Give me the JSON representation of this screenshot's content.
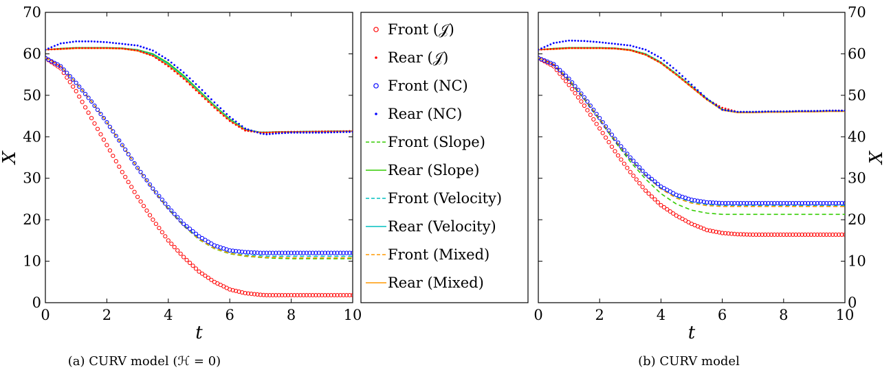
{
  "chart_data": [
    {
      "type": "line",
      "caption": "(a) CURV model (ℋ = 0)",
      "xlabel": "t",
      "ylabel": "X",
      "xlim": [
        0,
        10
      ],
      "ylim": [
        0,
        70
      ],
      "xticks": [
        0,
        2,
        4,
        6,
        8,
        10
      ],
      "yticks": [
        0,
        10,
        20,
        30,
        40,
        50,
        60,
        70
      ],
      "ylabel_side": "left",
      "x": [
        0,
        0.5,
        1,
        1.5,
        2,
        2.5,
        3,
        3.5,
        4,
        4.5,
        5,
        5.5,
        6,
        6.5,
        7,
        7.2,
        7.5,
        8,
        8.5,
        9,
        9.5,
        10
      ],
      "series": [
        {
          "name": "Front (𝒥)",
          "style": "circle",
          "color": "#ff0000",
          "values": [
            59,
            56.5,
            51,
            44.5,
            38,
            31.5,
            25.5,
            20,
            15,
            11,
            7.5,
            5,
            3.2,
            2.3,
            1.9,
            1.8,
            1.8,
            1.8,
            1.8,
            1.8,
            1.8,
            1.8
          ]
        },
        {
          "name": "Rear (𝒥)",
          "style": "dot",
          "color": "#ff0000",
          "values": [
            61,
            61.2,
            61.4,
            61.4,
            61.4,
            61.3,
            60.8,
            59.5,
            57,
            54,
            50.5,
            47,
            43.8,
            41.5,
            41,
            41,
            41.1,
            41.2,
            41.2,
            41.3,
            41.3,
            41.4
          ]
        },
        {
          "name": "Front (NC)",
          "style": "circle",
          "color": "#0000ff",
          "values": [
            59,
            57,
            53,
            48.5,
            43.5,
            38,
            32.5,
            27.5,
            23,
            19,
            16,
            13.8,
            12.6,
            12.2,
            12,
            12,
            12,
            12,
            12,
            12,
            12,
            12
          ]
        },
        {
          "name": "Rear (NC)",
          "style": "dot",
          "color": "#0000ff",
          "values": [
            61,
            62.5,
            63,
            63,
            62.8,
            62.4,
            62,
            60.8,
            58.5,
            55.5,
            52,
            48.3,
            44.8,
            42,
            40.8,
            40.6,
            40.8,
            41,
            41,
            41,
            41.1,
            41.2
          ]
        },
        {
          "name": "Front (Slope)",
          "style": "dashed",
          "color": "#33cc00",
          "values": [
            59,
            57,
            53,
            48.5,
            43.5,
            38,
            32.5,
            27.3,
            22.5,
            18.5,
            15.2,
            13,
            11.8,
            11.2,
            10.9,
            10.8,
            10.7,
            10.6,
            10.6,
            10.6,
            10.6,
            10.6
          ]
        },
        {
          "name": "Rear (Slope)",
          "style": "solid",
          "color": "#33cc00",
          "values": [
            61,
            61.3,
            61.5,
            61.5,
            61.5,
            61.4,
            61,
            60,
            57.8,
            54.8,
            51.2,
            47.6,
            44.3,
            41.8,
            41.1,
            41.1,
            41.2,
            41.2,
            41.3,
            41.3,
            41.4,
            41.4
          ]
        },
        {
          "name": "Front (Velocity)",
          "style": "dashed",
          "color": "#00bfbf",
          "values": [
            59,
            57,
            53,
            48.5,
            43.5,
            38,
            32.5,
            27.4,
            22.8,
            18.8,
            15.5,
            13.2,
            12,
            11.5,
            11.3,
            11.2,
            11.2,
            11.2,
            11.2,
            11.2,
            11.2,
            11.2
          ]
        },
        {
          "name": "Rear (Velocity)",
          "style": "solid",
          "color": "#00bfbf",
          "values": [
            61,
            61.2,
            61.4,
            61.4,
            61.4,
            61.3,
            60.9,
            59.8,
            57.5,
            54.5,
            51,
            47.4,
            44.1,
            41.7,
            41.1,
            41.1,
            41.2,
            41.2,
            41.3,
            41.3,
            41.4,
            41.4
          ]
        },
        {
          "name": "Front (Mixed)",
          "style": "dashed",
          "color": "#ff9900",
          "values": [
            59,
            57,
            53,
            48.5,
            43.5,
            38,
            32.5,
            27.3,
            22.6,
            18.6,
            15.3,
            13.1,
            11.9,
            11.3,
            11,
            10.9,
            10.9,
            10.8,
            10.8,
            10.8,
            10.8,
            10.8
          ]
        },
        {
          "name": "Rear (Mixed)",
          "style": "solid",
          "color": "#ff9900",
          "values": [
            61,
            61.1,
            61.3,
            61.3,
            61.3,
            61.2,
            60.7,
            59.5,
            57.2,
            54.2,
            50.7,
            47.2,
            43.9,
            41.6,
            41,
            41,
            41.1,
            41.1,
            41.2,
            41.2,
            41.3,
            41.3
          ]
        }
      ]
    },
    {
      "type": "line",
      "caption": "(b) CURV model",
      "xlabel": "t",
      "ylabel": "X",
      "xlim": [
        0,
        10
      ],
      "ylim": [
        0,
        70
      ],
      "xticks": [
        0,
        2,
        4,
        6,
        8,
        10
      ],
      "yticks": [
        0,
        10,
        20,
        30,
        40,
        50,
        60,
        70
      ],
      "ylabel_side": "right",
      "x": [
        0,
        0.5,
        1,
        1.5,
        2,
        2.5,
        3,
        3.5,
        4,
        4.5,
        5,
        5.5,
        6,
        6.5,
        7,
        7.5,
        8,
        8.5,
        9,
        9.5,
        10
      ],
      "series": [
        {
          "name": "Front (𝒥)",
          "style": "circle",
          "color": "#ff0000",
          "values": [
            59,
            57,
            52.5,
            47.5,
            42,
            36.5,
            31.5,
            27,
            23.5,
            21,
            19,
            17.5,
            16.8,
            16.5,
            16.4,
            16.4,
            16.4,
            16.4,
            16.4,
            16.4,
            16.4
          ]
        },
        {
          "name": "Rear (𝒥)",
          "style": "dot",
          "color": "#ff0000",
          "values": [
            61,
            61.2,
            61.4,
            61.4,
            61.4,
            61.3,
            60.9,
            59.8,
            57.8,
            55,
            52,
            49,
            47,
            46,
            46,
            46.1,
            46.1,
            46.2,
            46.2,
            46.3,
            46.3
          ]
        },
        {
          "name": "Front (NC)",
          "style": "circle",
          "color": "#0000ff",
          "values": [
            59,
            57.5,
            54,
            49.5,
            44.5,
            39.5,
            35,
            31,
            28,
            26,
            24.8,
            24.2,
            24,
            24,
            24,
            24,
            24,
            24,
            24,
            24,
            24
          ]
        },
        {
          "name": "Rear (NC)",
          "style": "dot",
          "color": "#0000ff",
          "values": [
            61,
            62.6,
            63.2,
            63.1,
            62.8,
            62.4,
            62,
            61,
            59,
            56,
            52.6,
            49.2,
            46.5,
            46,
            46,
            46.1,
            46.1,
            46.2,
            46.2,
            46.3,
            46.3
          ]
        },
        {
          "name": "Front (Slope)",
          "style": "dashed",
          "color": "#33cc00",
          "values": [
            59,
            57.3,
            53.5,
            49,
            44,
            38.8,
            34,
            29.8,
            26.3,
            23.8,
            22.3,
            21.6,
            21.3,
            21.3,
            21.3,
            21.3,
            21.3,
            21.3,
            21.3,
            21.3,
            21.3
          ]
        },
        {
          "name": "Rear (Slope)",
          "style": "solid",
          "color": "#33cc00",
          "values": [
            61,
            61.3,
            61.5,
            61.5,
            61.5,
            61.4,
            61,
            60,
            58,
            55.2,
            52.2,
            49.2,
            46.6,
            45.9,
            45.9,
            46,
            46,
            46.1,
            46.1,
            46.2,
            46.2
          ]
        },
        {
          "name": "Front (Velocity)",
          "style": "dashed",
          "color": "#00bfbf",
          "values": [
            59,
            57.5,
            53.9,
            49.4,
            44.4,
            39.3,
            34.8,
            30.8,
            27.6,
            25.4,
            24.2,
            23.6,
            23.4,
            23.4,
            23.4,
            23.4,
            23.4,
            23.4,
            23.4,
            23.4,
            23.4
          ]
        },
        {
          "name": "Rear (Velocity)",
          "style": "solid",
          "color": "#00bfbf",
          "values": [
            61,
            61.2,
            61.4,
            61.4,
            61.4,
            61.3,
            60.9,
            59.9,
            57.9,
            55.1,
            52.1,
            49.1,
            46.5,
            45.9,
            45.9,
            46,
            46,
            46.1,
            46.1,
            46.2,
            46.2
          ]
        },
        {
          "name": "Front (Mixed)",
          "style": "dashed",
          "color": "#ff9900",
          "values": [
            59,
            57.4,
            53.8,
            49.3,
            44.3,
            39.2,
            34.6,
            30.6,
            27.4,
            25.2,
            24,
            23.4,
            23.2,
            23.2,
            23.2,
            23.2,
            23.2,
            23.2,
            23.2,
            23.2,
            23.2
          ]
        },
        {
          "name": "Rear (Mixed)",
          "style": "solid",
          "color": "#ff9900",
          "values": [
            61,
            61.1,
            61.3,
            61.3,
            61.3,
            61.2,
            60.8,
            59.7,
            57.7,
            54.9,
            51.9,
            48.9,
            46.4,
            45.8,
            45.8,
            45.9,
            45.9,
            46,
            46,
            46.1,
            46.1
          ]
        }
      ]
    }
  ],
  "legend": {
    "placement": "center",
    "entries": [
      {
        "label": "Front (𝒥)",
        "style": "circle",
        "color": "#ff0000"
      },
      {
        "label": "Rear (𝒥)",
        "style": "dot",
        "color": "#ff0000"
      },
      {
        "label": "Front (NC)",
        "style": "circle",
        "color": "#0000ff"
      },
      {
        "label": "Rear (NC)",
        "style": "dot",
        "color": "#0000ff"
      },
      {
        "label": "Front (Slope)",
        "style": "dashed",
        "color": "#33cc00"
      },
      {
        "label": "Rear (Slope)",
        "style": "solid",
        "color": "#33cc00"
      },
      {
        "label": "Front (Velocity)",
        "style": "dashed",
        "color": "#00bfbf"
      },
      {
        "label": "Rear (Velocity)",
        "style": "solid",
        "color": "#00bfbf"
      },
      {
        "label": "Front (Mixed)",
        "style": "dashed",
        "color": "#ff9900"
      },
      {
        "label": "Rear (Mixed)",
        "style": "solid",
        "color": "#ff9900"
      }
    ]
  }
}
